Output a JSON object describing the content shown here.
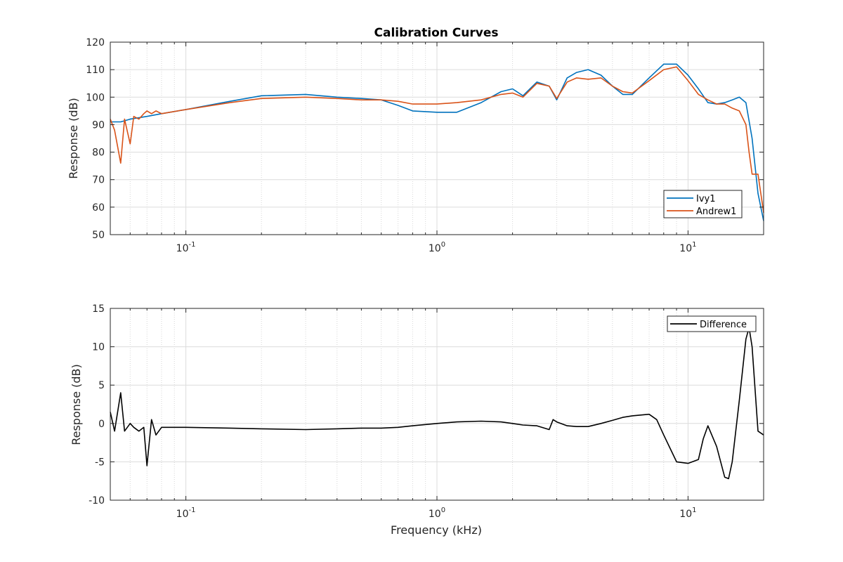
{
  "chart_data": [
    {
      "type": "line",
      "title": "Calibration Curves",
      "xlabel": "",
      "ylabel": "Response (dB)",
      "xscale": "log",
      "xlim": [
        0.05,
        20
      ],
      "ylim": [
        50,
        120
      ],
      "yticks": [
        50,
        60,
        70,
        80,
        90,
        100,
        110,
        120
      ],
      "xtick_labels": [
        "10^-1",
        "10^0",
        "10^1"
      ],
      "grid": true,
      "legend_position": "bottom-right",
      "series": [
        {
          "name": "Ivy1",
          "color": "#0072BD",
          "x": [
            0.05,
            0.055,
            0.06,
            0.065,
            0.07,
            0.08,
            0.1,
            0.15,
            0.2,
            0.3,
            0.4,
            0.5,
            0.6,
            0.7,
            0.8,
            1.0,
            1.2,
            1.5,
            1.8,
            2.0,
            2.2,
            2.5,
            2.8,
            3.0,
            3.3,
            3.6,
            4.0,
            4.5,
            5.0,
            5.5,
            6.0,
            7.0,
            8.0,
            9.0,
            10.0,
            11.0,
            12.0,
            13.0,
            14.0,
            15.0,
            16.0,
            17.0,
            18.0,
            19.0,
            20.0
          ],
          "y": [
            91,
            91,
            92,
            92.5,
            93,
            94,
            95.5,
            98.5,
            100.5,
            101,
            100,
            99.5,
            99,
            97,
            95,
            94.5,
            94.5,
            98,
            102,
            103,
            100.5,
            105.5,
            104,
            99,
            107,
            109,
            110,
            108,
            104,
            101,
            101,
            107,
            112,
            112,
            108,
            103,
            98,
            97.5,
            98,
            99,
            100,
            98,
            85,
            65,
            55
          ]
        },
        {
          "name": "Andrew1",
          "color": "#D95319",
          "x": [
            0.05,
            0.052,
            0.055,
            0.057,
            0.06,
            0.062,
            0.065,
            0.068,
            0.07,
            0.073,
            0.076,
            0.08,
            0.1,
            0.15,
            0.2,
            0.3,
            0.4,
            0.5,
            0.6,
            0.7,
            0.8,
            1.0,
            1.2,
            1.5,
            1.8,
            2.0,
            2.2,
            2.5,
            2.8,
            3.0,
            3.3,
            3.6,
            4.0,
            4.5,
            5.0,
            5.5,
            6.0,
            7.0,
            8.0,
            9.0,
            10.0,
            11.0,
            12.0,
            13.0,
            14.0,
            15.0,
            16.0,
            17.0,
            17.5,
            18.0,
            19.0,
            20.0
          ],
          "y": [
            92,
            88,
            76,
            92,
            83,
            93,
            92,
            94,
            95,
            94,
            95,
            94,
            95.5,
            98,
            99.5,
            100,
            99.5,
            99,
            99,
            98.5,
            97.5,
            97.5,
            98,
            99,
            101,
            101.5,
            100,
            105,
            104,
            99.5,
            105.5,
            107,
            106.5,
            107,
            104,
            102,
            101.5,
            106,
            110,
            111,
            106,
            101,
            99,
            97.5,
            97.5,
            96,
            95,
            90,
            80,
            72,
            72,
            58
          ]
        }
      ]
    },
    {
      "type": "line",
      "title": "",
      "xlabel": "Frequency (kHz)",
      "ylabel": "Response (dB)",
      "xscale": "log",
      "xlim": [
        0.05,
        20
      ],
      "ylim": [
        -10,
        15
      ],
      "yticks": [
        -10,
        -5,
        0,
        5,
        10,
        15
      ],
      "xtick_labels": [
        "10^-1",
        "10^0",
        "10^1"
      ],
      "grid": true,
      "legend_position": "top-right",
      "series": [
        {
          "name": "Difference",
          "color": "#000000",
          "x": [
            0.05,
            0.052,
            0.055,
            0.057,
            0.06,
            0.062,
            0.065,
            0.068,
            0.07,
            0.073,
            0.076,
            0.08,
            0.09,
            0.1,
            0.15,
            0.2,
            0.3,
            0.4,
            0.5,
            0.6,
            0.7,
            0.8,
            1.0,
            1.2,
            1.5,
            1.8,
            2.0,
            2.2,
            2.5,
            2.8,
            2.9,
            3.0,
            3.3,
            3.6,
            4.0,
            4.5,
            5.0,
            5.5,
            6.0,
            7.0,
            7.5,
            8.0,
            9.0,
            10.0,
            11.0,
            11.5,
            12.0,
            13.0,
            14.0,
            14.5,
            15.0,
            16.0,
            17.0,
            17.5,
            18.0,
            19.0,
            20.0
          ],
          "y": [
            1.5,
            -1,
            4,
            -1,
            0,
            -0.5,
            -1,
            -0.5,
            -5.5,
            0.5,
            -1.5,
            -0.5,
            -0.5,
            -0.5,
            -0.6,
            -0.7,
            -0.8,
            -0.7,
            -0.6,
            -0.6,
            -0.5,
            -0.3,
            0,
            0.2,
            0.3,
            0.2,
            0,
            -0.2,
            -0.3,
            -0.8,
            0.5,
            0.2,
            -0.3,
            -0.4,
            -0.4,
            0,
            0.4,
            0.8,
            1.0,
            1.2,
            0.5,
            -1.5,
            -5.0,
            -5.2,
            -4.7,
            -2.0,
            -0.3,
            -3,
            -7,
            -7.2,
            -5,
            3,
            11,
            12.5,
            10,
            -1,
            -1.5
          ]
        }
      ]
    }
  ]
}
